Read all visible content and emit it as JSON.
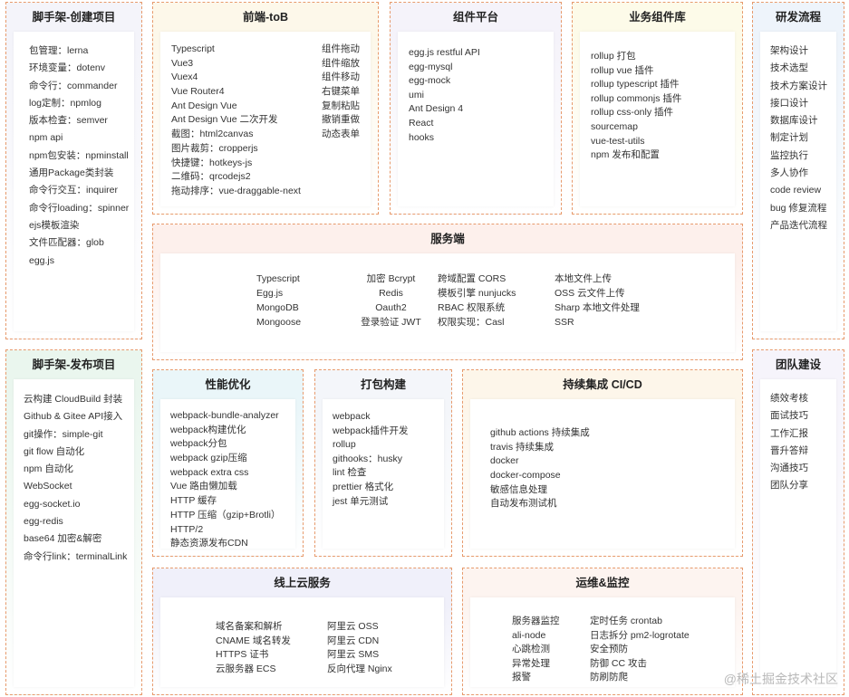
{
  "colors": {
    "border": "#e79a6c"
  },
  "boxes": [
    {
      "id": "scaffold-create",
      "title": "脚手架-创建项目",
      "bg": "#f4f4fa",
      "cols": [
        [
          "包管理：lerna",
          "环境变量：dotenv",
          "命令行：commander",
          "log定制：npmlog",
          "版本检查：semver",
          "npm api",
          "npm包安装：npminstall",
          "通用Package类封装",
          "命令行交互：inquirer",
          "命令行loading：spinner",
          "ejs模板渲染",
          "文件匹配器：glob",
          "egg.js"
        ]
      ]
    },
    {
      "id": "frontend-tob",
      "title": "前端-toB",
      "bg": "#fdf8ea",
      "cols": [
        [
          "Typescript",
          "Vue3",
          "Vuex4",
          "Vue Router4",
          "Ant Design Vue",
          "Ant Design Vue 二次开发",
          "截图：html2canvas",
          "图片裁剪：cropperjs",
          "快捷键：hotkeys-js",
          "二维码：qrcodejs2",
          "拖动排序：vue-draggable-next"
        ],
        [
          "组件拖动",
          "组件缩放",
          "组件移动",
          "右键菜单",
          "复制粘贴",
          "撤销重做",
          "动态表单"
        ]
      ]
    },
    {
      "id": "component-platform",
      "title": "组件平台",
      "bg": "#f5f3fa",
      "cols": [
        [
          "egg.js restful API",
          "egg-mysql",
          "egg-mock",
          "umi",
          "Ant Design 4",
          "React",
          "hooks"
        ]
      ]
    },
    {
      "id": "business-components",
      "title": "业务组件库",
      "bg": "#fdfbe9",
      "cols": [
        [
          "rollup 打包",
          "rollup vue 插件",
          "rollup typescript 插件",
          "rollup commonjs 插件",
          "rollup css-only 插件",
          "sourcemap",
          "vue-test-utils",
          "npm 发布和配置"
        ]
      ]
    },
    {
      "id": "dev-process",
      "title": "研发流程",
      "bg": "#eef4fb",
      "cols": [
        [
          "架构设计",
          "技术选型",
          "技术方案设计",
          "接口设计",
          "数据库设计",
          "制定计划",
          "监控执行",
          "多人协作",
          "code review",
          "bug 修复流程",
          "产品迭代流程"
        ]
      ]
    },
    {
      "id": "server",
      "title": "服务端",
      "bg": "#fdf0ec",
      "cols": [
        [
          "Typescript",
          "Egg.js",
          "MongoDB",
          "Mongoose"
        ],
        [
          "加密 Bcrypt",
          "Redis",
          "Oauth2",
          "登录验证 JWT"
        ],
        [
          "跨域配置 CORS",
          "模板引擎 nunjucks",
          "RBAC 权限系统",
          "权限实现：Casl"
        ],
        [
          "本地文件上传",
          "OSS 云文件上传",
          "Sharp 本地文件处理",
          "SSR"
        ]
      ]
    },
    {
      "id": "scaffold-publish",
      "title": "脚手架-发布项目",
      "bg": "#eaf6ee",
      "cols": [
        [
          "云构建 CloudBuild 封装",
          "Github & Gitee API接入",
          "git操作：simple-git",
          "git flow 自动化",
          "npm 自动化",
          "WebSocket",
          "egg-socket.io",
          "egg-redis",
          "base64 加密&解密",
          "命令行link：terminalLink"
        ]
      ]
    },
    {
      "id": "performance",
      "title": "性能优化",
      "bg": "#eaf6f9",
      "cols": [
        [
          "webpack-bundle-analyzer",
          "webpack构建优化",
          "webpack分包",
          "webpack gzip压缩",
          "webpack extra css",
          "Vue 路由懒加载",
          "HTTP 缓存",
          "HTTP 压缩（gzip+Brotli）",
          "HTTP/2",
          "静态资源发布CDN"
        ]
      ]
    },
    {
      "id": "build",
      "title": "打包构建",
      "bg": "#f4f6fa",
      "cols": [
        [
          "webpack",
          "webpack插件开发",
          "rollup",
          "githooks：husky",
          "lint 检查",
          "prettier 格式化",
          "jest 单元测试"
        ]
      ]
    },
    {
      "id": "cicd",
      "title": "持续集成 CI/CD",
      "bg": "#fdf6ea",
      "cols": [
        [
          "github actions 持续集成",
          "travis 持续集成",
          "docker",
          "docker-compose",
          "敏感信息处理",
          "自动发布测试机"
        ]
      ]
    },
    {
      "id": "team",
      "title": "团队建设",
      "bg": "#f6f4fb",
      "cols": [
        [
          "绩效考核",
          "面试技巧",
          "工作汇报",
          "晋升答辩",
          "沟通技巧",
          "团队分享"
        ]
      ]
    },
    {
      "id": "cloud",
      "title": "线上云服务",
      "bg": "#f0f0fa",
      "cols": [
        [
          "域名备案和解析",
          "CNAME 域名转发",
          "HTTPS 证书",
          "云服务器 ECS"
        ],
        [
          "阿里云 OSS",
          "阿里云 CDN",
          "阿里云 SMS",
          "反向代理 Nginx"
        ]
      ]
    },
    {
      "id": "ops",
      "title": "运维&监控",
      "bg": "#fdf4f0",
      "cols": [
        [
          "服务器监控",
          "ali-node",
          "心跳检测",
          "异常处理",
          "报警"
        ],
        [
          "定时任务 crontab",
          "日志拆分 pm2-logrotate",
          "安全预防",
          "防御 CC 攻击",
          "防刷防爬"
        ]
      ]
    }
  ],
  "watermark": "@稀土掘金技术社区"
}
